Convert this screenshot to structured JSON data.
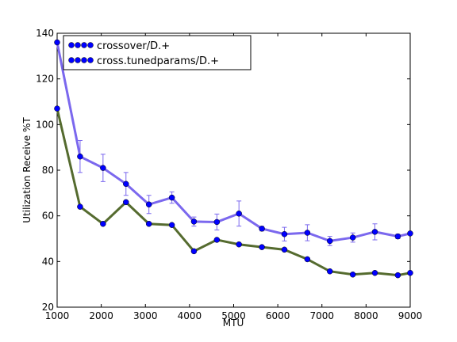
{
  "chart_data": {
    "type": "line",
    "xlabel": "MTU",
    "ylabel": "Utilization Receive %T",
    "x": [
      1000,
      1520,
      2040,
      2560,
      3080,
      3600,
      4100,
      4620,
      5120,
      5640,
      6150,
      6670,
      7180,
      7700,
      8200,
      8720,
      9000
    ],
    "series": [
      {
        "name": "crossover/D.+",
        "color": "#556b2f",
        "marker_color": "#0000ff",
        "values": [
          107,
          64,
          56.5,
          66,
          56.5,
          56,
          44.5,
          49.5,
          47.5,
          46.3,
          45.2,
          41,
          35.7,
          34.3,
          35,
          34,
          35
        ]
      },
      {
        "name": "cross.tunedparams/D.+",
        "color": "#7b68ee",
        "marker_color": "#0000ff",
        "values": [
          136,
          86,
          81,
          74,
          65,
          68,
          57.5,
          57.3,
          61,
          54.4,
          52,
          52.6,
          49,
          50.5,
          53,
          51,
          52.3
        ],
        "errors": [
          0,
          7,
          6,
          5,
          4,
          2.5,
          2,
          3.5,
          5.5,
          1,
          3,
          3.5,
          2,
          2,
          3.5,
          1,
          0
        ]
      }
    ],
    "xlim": [
      1000,
      9000
    ],
    "xticks": [
      1000,
      2000,
      3000,
      4000,
      5000,
      6000,
      7000,
      8000,
      9000
    ],
    "ylim": [
      20,
      140
    ],
    "yticks": [
      20,
      40,
      60,
      80,
      100,
      120,
      140
    ],
    "legend": "upper left"
  }
}
